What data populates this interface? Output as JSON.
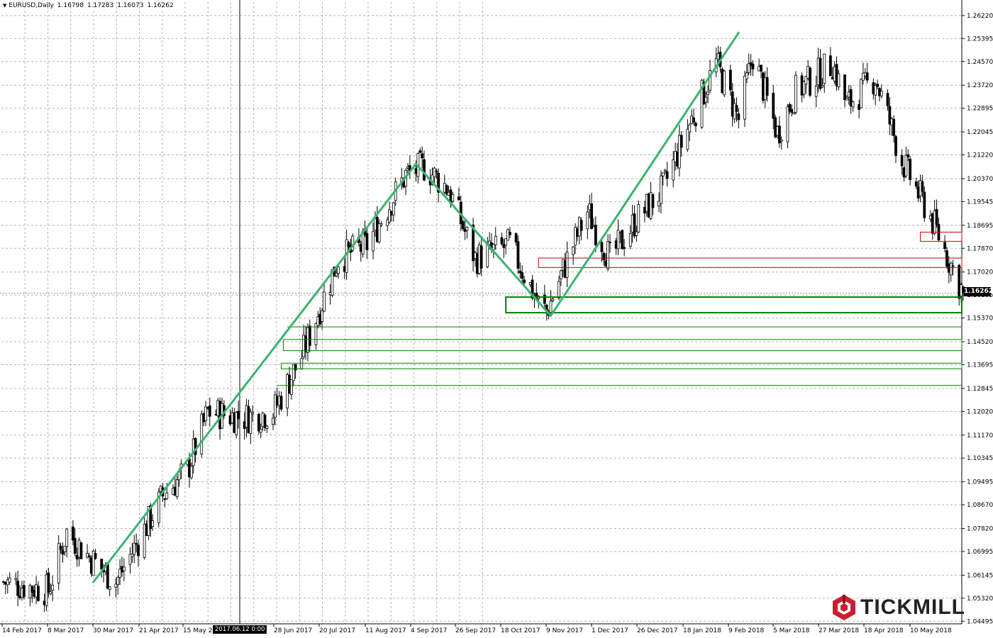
{
  "header": {
    "symbol": "EURUSD,Daily",
    "open": "1.16798",
    "high": "1.17283",
    "low": "1.16073",
    "close": "1.16262"
  },
  "current_price_label": "1.16262",
  "cursor_time_label": "2017.06.12 0:00",
  "brand": {
    "name": "TICKMILL",
    "color": "#c8202f"
  },
  "colors": {
    "trendline": "#3cb371",
    "support_zone": "#008000",
    "resistance_zone": "#d00000",
    "grid": "#b4b4b4",
    "candle_bull": "#ffffff",
    "candle_bear": "#000000"
  },
  "chart_data": {
    "type": "candlestick",
    "symbol": "EURUSD",
    "timeframe": "Daily",
    "ylim": [
      1.044,
      1.267
    ],
    "y_ticks": [
      "1.26220",
      "1.25395",
      "1.24570",
      "1.23720",
      "1.22895",
      "1.22045",
      "1.21220",
      "1.20370",
      "1.19545",
      "1.18695",
      "1.17870",
      "1.17020",
      "1.16195",
      "1.15370",
      "1.14520",
      "1.13695",
      "1.12845",
      "1.12020",
      "1.11170",
      "1.10345",
      "1.09495",
      "1.08670",
      "1.07820",
      "1.06995",
      "1.06145",
      "1.05320",
      "1.04495"
    ],
    "x_ticks": [
      "14 Feb 2017",
      "8 Mar 2017",
      "30 Mar 2017",
      "21 Apr 2017",
      "15 May 2",
      "28 Jun 2017",
      "20 Jul 2017",
      "11 Aug 2017",
      "4 Sep 2017",
      "26 Sep 2017",
      "18 Oct 2017",
      "9 Nov 2017",
      "1 Dec 2017",
      "26 Dec 2017",
      "18 Jan 2018",
      "9 Feb 2018",
      "5 Mar 2018",
      "27 Mar 2018",
      "18 Apr 2018",
      "10 May 2018"
    ],
    "ohlc_path": [
      [
        "14 Feb 2017",
        1.059
      ],
      [
        "8 Mar 2017",
        1.056
      ],
      [
        "17 Mar 2017",
        1.077
      ],
      [
        "28 Mar 2017",
        1.068
      ],
      [
        "10 Apr 2017",
        1.059
      ],
      [
        "3 May 2017",
        1.09
      ],
      [
        "15 May 2017",
        1.099
      ],
      [
        "25 May 2017",
        1.12
      ],
      [
        "12 Jun 2017",
        1.118
      ],
      [
        "26 Jun 2017",
        1.12
      ],
      [
        "10 Jul 2017",
        1.14
      ],
      [
        "28 Jul 2017",
        1.175
      ],
      [
        "11 Aug 2017",
        1.18
      ],
      [
        "30 Aug 2017",
        1.205
      ],
      [
        "8 Sep 2017",
        1.208
      ],
      [
        "20 Sep 2017",
        1.2
      ],
      [
        "3 Oct 2017",
        1.175
      ],
      [
        "20 Oct 2017",
        1.18
      ],
      [
        "3 Nov 2017",
        1.159
      ],
      [
        "7 Nov 2017",
        1.156
      ],
      [
        "20 Nov 2017",
        1.18
      ],
      [
        "27 Nov 2017",
        1.192
      ],
      [
        "8 Dec 2017",
        1.175
      ],
      [
        "20 Dec 2017",
        1.188
      ],
      [
        "3 Jan 2018",
        1.2
      ],
      [
        "17 Jan 2018",
        1.225
      ],
      [
        "29 Jan 2018",
        1.245
      ],
      [
        "9 Feb 2018",
        1.225
      ],
      [
        "16 Feb 2018",
        1.248
      ],
      [
        "28 Feb 2018",
        1.22
      ],
      [
        "9 Mar 2018",
        1.235
      ],
      [
        "27 Mar 2018",
        1.245
      ],
      [
        "3 Apr 2018",
        1.23
      ],
      [
        "17 Apr 2018",
        1.24
      ],
      [
        "30 Apr 2018",
        1.21
      ],
      [
        "14 May 2018",
        1.19
      ],
      [
        "21 May 2018",
        1.178
      ],
      [
        "30 May 2018",
        1.1626
      ]
    ],
    "last_close": 1.16262,
    "trendlines": [
      {
        "from": [
          "30 Mar 2017",
          1.059
        ],
        "to": [
          "4 Sep 2017",
          1.209
        ]
      },
      {
        "from": [
          "4 Sep 2017",
          1.209
        ],
        "to": [
          "9 Nov 2017",
          1.1545
        ]
      },
      {
        "from": [
          "9 Nov 2017",
          1.1545
        ],
        "to": [
          "9 Feb 2018",
          1.256
        ]
      }
    ],
    "support_zones": [
      {
        "from": "18 Oct 2017",
        "top": 1.1612,
        "bottom": 1.1556,
        "thick": true
      },
      {
        "from": "3 Jul 2017",
        "top": 1.1505,
        "bottom": 1.1505
      },
      {
        "from": "1 Jul 2017",
        "top": 1.146,
        "bottom": 1.142
      },
      {
        "from": "30 Jun 2017",
        "top": 1.1375,
        "bottom": 1.1355
      },
      {
        "from": "28 Jun 2017",
        "top": 1.1295,
        "bottom": 1.1295
      }
    ],
    "resistance_zones": [
      {
        "from": "3 Nov 2017",
        "top": 1.1752,
        "bottom": 1.1718
      },
      {
        "from": "9 May 2018",
        "top": 1.1845,
        "bottom": 1.1812
      }
    ],
    "grid": true,
    "legend": "none"
  }
}
